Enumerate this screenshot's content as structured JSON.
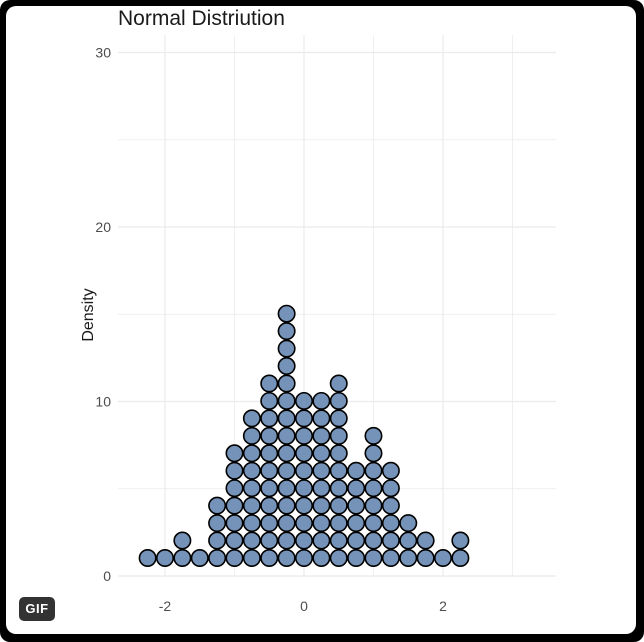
{
  "badge": {
    "label": "GIF"
  },
  "chart_data": {
    "type": "dotplot",
    "title": "Normal Distriution",
    "xlabel": "",
    "ylabel": "Density",
    "xlim": [
      -2.7,
      3.6
    ],
    "ylim": [
      0,
      30
    ],
    "x_ticks": [
      -2,
      0,
      2
    ],
    "y_ticks": [
      0,
      10,
      20,
      30
    ],
    "grid": true,
    "legend": "none",
    "colors": {
      "fill": "#7592b8",
      "stroke": "#000000",
      "grid": "#ebebeb",
      "text": "#4d4d4d",
      "title": "#1a1a1a"
    },
    "bins": [
      {
        "x": -2.25,
        "count": 1
      },
      {
        "x": -2.0,
        "count": 1
      },
      {
        "x": -1.75,
        "count": 2
      },
      {
        "x": -1.5,
        "count": 1
      },
      {
        "x": -1.25,
        "count": 4
      },
      {
        "x": -1.0,
        "count": 7
      },
      {
        "x": -0.75,
        "count": 9
      },
      {
        "x": -0.5,
        "count": 11
      },
      {
        "x": -0.25,
        "count": 15
      },
      {
        "x": 0.0,
        "count": 10
      },
      {
        "x": 0.25,
        "count": 10
      },
      {
        "x": 0.5,
        "count": 11
      },
      {
        "x": 0.75,
        "count": 6
      },
      {
        "x": 1.0,
        "count": 8
      },
      {
        "x": 1.25,
        "count": 6
      },
      {
        "x": 1.5,
        "count": 3
      },
      {
        "x": 1.75,
        "count": 2
      },
      {
        "x": 2.0,
        "count": 1
      },
      {
        "x": 2.25,
        "count": 2
      }
    ]
  }
}
